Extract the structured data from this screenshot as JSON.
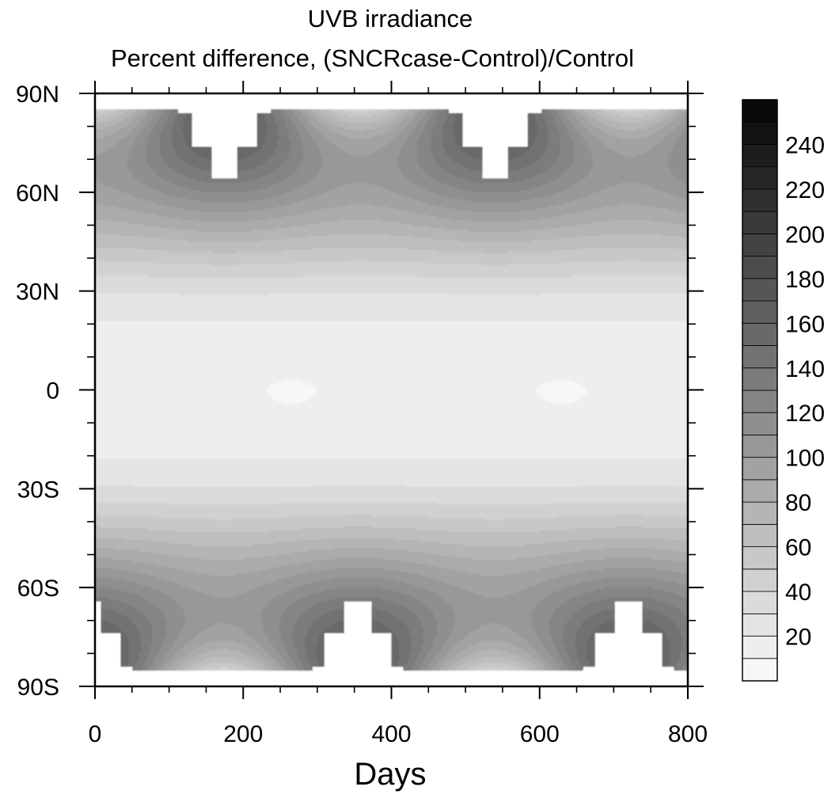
{
  "chart_data": {
    "type": "heatmap",
    "title": "UVB irradiance",
    "subtitle": "Percent difference, (SNCRcase-Control)/Control",
    "xlabel": "Days",
    "ylabel": "",
    "xlim": [
      0,
      800
    ],
    "ylim": [
      -90,
      90
    ],
    "x_ticks": [
      0,
      200,
      400,
      600,
      800
    ],
    "x_tick_labels": [
      "0",
      "200",
      "400",
      "600",
      "800"
    ],
    "y_ticks": [
      90,
      60,
      30,
      0,
      -30,
      -60,
      -90
    ],
    "y_tick_labels": [
      "90N",
      "60N",
      "30N",
      "0",
      "30S",
      "60S",
      "90S"
    ],
    "colorbar": {
      "levels": [
        10,
        20,
        30,
        40,
        50,
        60,
        70,
        80,
        90,
        100,
        110,
        120,
        130,
        140,
        150,
        160,
        170,
        180,
        190,
        200,
        210,
        220,
        230,
        240,
        250
      ],
      "tick_labels": [
        "20",
        "40",
        "60",
        "80",
        "100",
        "120",
        "140",
        "160",
        "180",
        "200",
        "220",
        "240"
      ],
      "tick_values": [
        20,
        40,
        60,
        80,
        100,
        120,
        140,
        160,
        180,
        200,
        220,
        240
      ],
      "color_low": "#f7f7f7",
      "color_high": "#0a0a0a"
    },
    "seasonal_period_days": 365,
    "nh_peak_days": [
      175,
      540
    ],
    "sh_peak_days": [
      355,
      720
    ],
    "polar_mask_color": "#ffffff",
    "grid": false
  }
}
